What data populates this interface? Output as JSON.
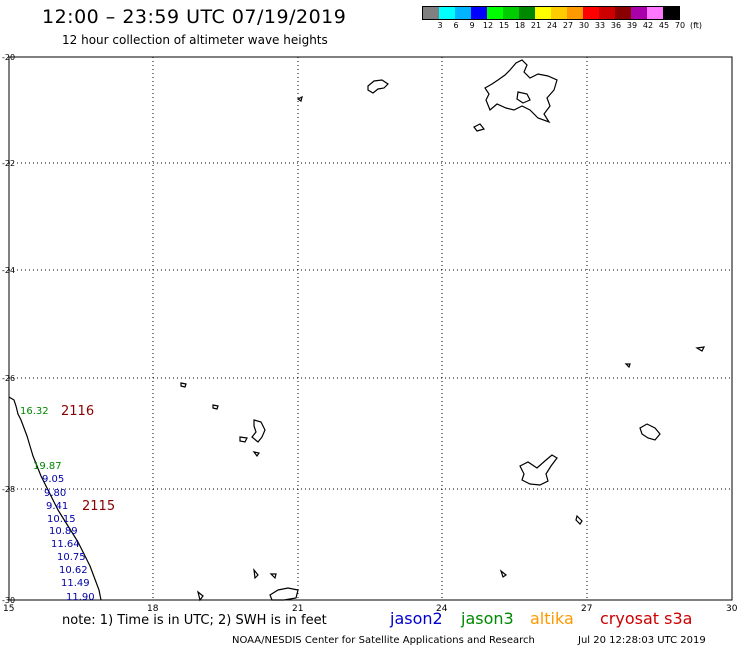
{
  "header": {
    "title": "12:00 – 23:59 UTC 07/19/2019",
    "subtitle": "12 hour collection of altimeter wave heights"
  },
  "legend": {
    "colors": [
      "#808080",
      "#00ffff",
      "#00b4ff",
      "#0000ff",
      "#00ff00",
      "#00cc00",
      "#008800",
      "#ffff00",
      "#ffcc00",
      "#ff9900",
      "#ff0000",
      "#cc0000",
      "#880000",
      "#aa00aa",
      "#ff77ff",
      "#000000"
    ],
    "labels": [
      "3",
      "6",
      "9",
      "12",
      "15",
      "18",
      "21",
      "24",
      "27",
      "30",
      "33",
      "36",
      "39",
      "42",
      "45",
      "70",
      "(ft)"
    ]
  },
  "map": {
    "lat_labels": [
      "-20",
      "-22",
      "-24",
      "-26",
      "-28",
      "-30"
    ],
    "lon_labels": [
      "15",
      "18",
      "21",
      "24",
      "27",
      "30"
    ],
    "readings": [
      {
        "text": "16.32",
        "color": "#008800"
      },
      {
        "text": "19.87",
        "color": "#008800"
      },
      {
        "text": "9.05",
        "color": "#0000aa"
      },
      {
        "text": "9.80",
        "color": "#0000aa"
      },
      {
        "text": "9.41",
        "color": "#0000aa"
      },
      {
        "text": "10.15",
        "color": "#0000aa"
      },
      {
        "text": "10.89",
        "color": "#0000aa"
      },
      {
        "text": "11.64",
        "color": "#0000aa"
      },
      {
        "text": "10.75",
        "color": "#0000aa"
      },
      {
        "text": "10.62",
        "color": "#0000aa"
      },
      {
        "text": "11.49",
        "color": "#0000aa"
      },
      {
        "text": "11.90",
        "color": "#0000aa"
      }
    ],
    "passes": [
      {
        "text": "2116",
        "color": "#880000"
      },
      {
        "text": "2115",
        "color": "#880000"
      }
    ]
  },
  "footer": {
    "note": "note: 1) Time is in UTC; 2) SWH is in feet",
    "credit": "NOAA/NESDIS Center for Satellite Applications and Research",
    "timestamp": "Jul 20 12:28:03 UTC 2019",
    "satellites": [
      {
        "name": "jason2",
        "color": "#0000cc"
      },
      {
        "name": "jason3",
        "color": "#008800"
      },
      {
        "name": "altika",
        "color": "#ff9900"
      },
      {
        "name": "cryosat s3a",
        "color": "#cc0000"
      }
    ]
  }
}
